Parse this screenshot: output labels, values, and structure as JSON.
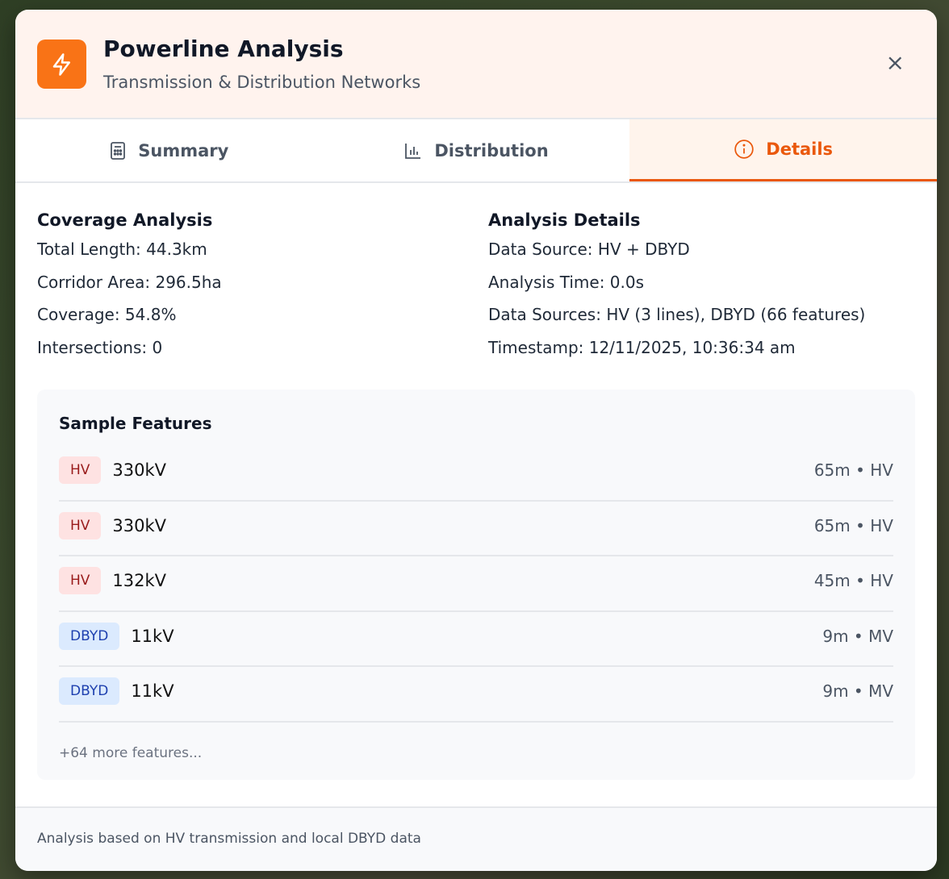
{
  "header": {
    "title": "Powerline Analysis",
    "subtitle": "Transmission & Distribution Networks",
    "icon": "lightning-bolt-icon",
    "close": "×",
    "accent": "#f97316"
  },
  "tabs": [
    {
      "label": "Summary",
      "icon": "calculator-icon"
    },
    {
      "label": "Distribution",
      "icon": "bar-chart-icon"
    },
    {
      "label": "Details",
      "icon": "info-icon",
      "active": true
    }
  ],
  "coverage": {
    "title": "Coverage Analysis",
    "items": [
      "Total Length: 44.3km",
      "Corridor Area: 296.5ha",
      "Coverage: 54.8%",
      "Intersections: 0"
    ]
  },
  "details": {
    "title": "Analysis Details",
    "items": [
      "Data Source: HV + DBYD",
      "Analysis Time: 0.0s",
      "Data Sources: HV (3 lines), DBYD (66 features)",
      "Timestamp: 12/11/2025, 10:36:34 am"
    ]
  },
  "samples": {
    "title": "Sample Features",
    "rows": [
      {
        "badge": "HV",
        "voltage": "330kV",
        "meta": "65m • HV"
      },
      {
        "badge": "HV",
        "voltage": "330kV",
        "meta": "65m • HV"
      },
      {
        "badge": "HV",
        "voltage": "132kV",
        "meta": "45m • HV"
      },
      {
        "badge": "DBYD",
        "voltage": "11kV",
        "meta": "9m • MV"
      },
      {
        "badge": "DBYD",
        "voltage": "11kV",
        "meta": "9m • MV"
      }
    ],
    "more": "+64 more features..."
  },
  "footer": "Analysis based on HV transmission and local DBYD data"
}
